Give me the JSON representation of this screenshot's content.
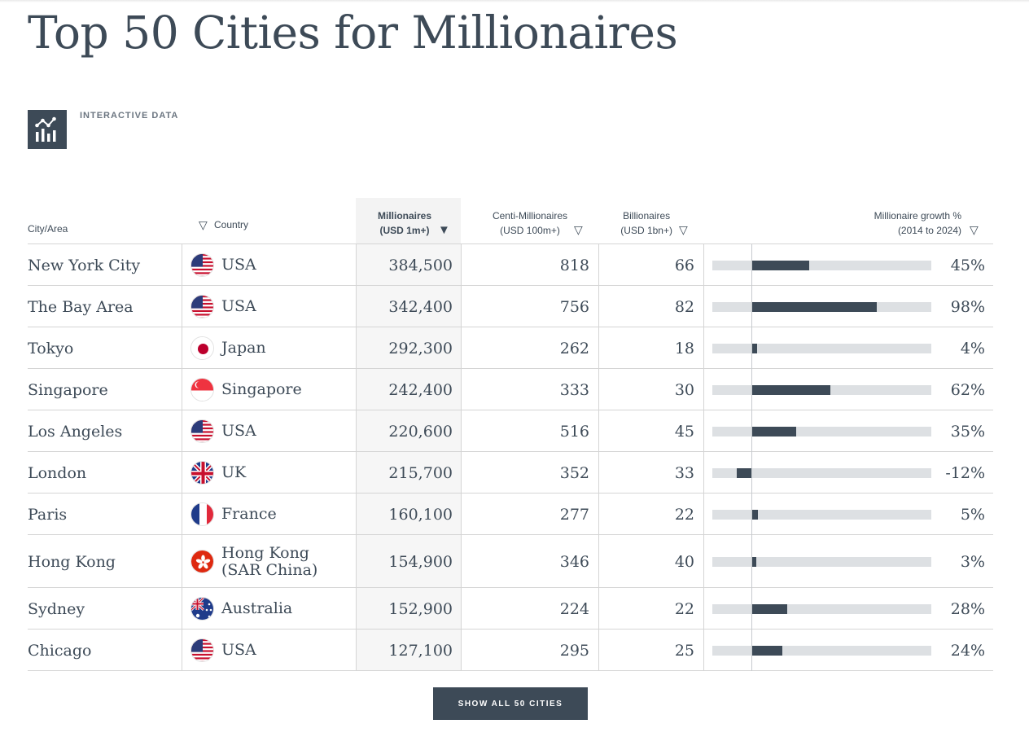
{
  "page": {
    "title": "Top 50 Cities for Millionaires",
    "badge_label": "INTERACTIVE DATA",
    "badge_icon": "bar-line-chart-icon"
  },
  "columns": {
    "city": "City/Area",
    "country": "Country",
    "millionaires_1": "Millionaires",
    "millionaires_2": "(USD 1m+)",
    "centi_1": "Centi-Millionaires",
    "centi_2": "(USD 100m+)",
    "billionaires_1": "Billionaires",
    "billionaires_2": "(USD 1bn+)",
    "growth_1": "Millionaire growth %",
    "growth_2": "(2014 to 2024)",
    "sort_icon": "triangle-down-icon",
    "active_sort": "millionaires"
  },
  "rows": [
    {
      "city": "New York City",
      "country": "USA",
      "flag": "usa",
      "millionaires": "384,500",
      "centi": "818",
      "billionaires": "66",
      "growth": "45%",
      "growth_value": 45
    },
    {
      "city": "The Bay Area",
      "country": "USA",
      "flag": "usa",
      "millionaires": "342,400",
      "centi": "756",
      "billionaires": "82",
      "growth": "98%",
      "growth_value": 98
    },
    {
      "city": "Tokyo",
      "country": "Japan",
      "flag": "japan",
      "millionaires": "292,300",
      "centi": "262",
      "billionaires": "18",
      "growth": "4%",
      "growth_value": 4
    },
    {
      "city": "Singapore",
      "country": "Singapore",
      "flag": "singapore",
      "millionaires": "242,400",
      "centi": "333",
      "billionaires": "30",
      "growth": "62%",
      "growth_value": 62
    },
    {
      "city": "Los Angeles",
      "country": "USA",
      "flag": "usa",
      "millionaires": "220,600",
      "centi": "516",
      "billionaires": "45",
      "growth": "35%",
      "growth_value": 35
    },
    {
      "city": "London",
      "country": "UK",
      "flag": "uk",
      "millionaires": "215,700",
      "centi": "352",
      "billionaires": "33",
      "growth": "-12%",
      "growth_value": -12
    },
    {
      "city": "Paris",
      "country": "France",
      "flag": "france",
      "millionaires": "160,100",
      "centi": "277",
      "billionaires": "22",
      "growth": "5%",
      "growth_value": 5
    },
    {
      "city": "Hong Kong",
      "country": "Hong Kong (SAR China)",
      "flag": "hongkong",
      "millionaires": "154,900",
      "centi": "346",
      "billionaires": "40",
      "growth": "3%",
      "growth_value": 3
    },
    {
      "city": "Sydney",
      "country": "Australia",
      "flag": "australia",
      "millionaires": "152,900",
      "centi": "224",
      "billionaires": "22",
      "growth": "28%",
      "growth_value": 28
    },
    {
      "city": "Chicago",
      "country": "USA",
      "flag": "usa",
      "millionaires": "127,100",
      "centi": "295",
      "billionaires": "25",
      "growth": "24%",
      "growth_value": 24
    }
  ],
  "growth_scale": {
    "min": -31,
    "max": 141
  },
  "colors": {
    "primary": "#3d4a57",
    "bar_track": "#dde0e3",
    "sorted_column_bg": "#f3f3f3"
  },
  "button": {
    "label": "SHOW ALL 50 CITIES"
  }
}
